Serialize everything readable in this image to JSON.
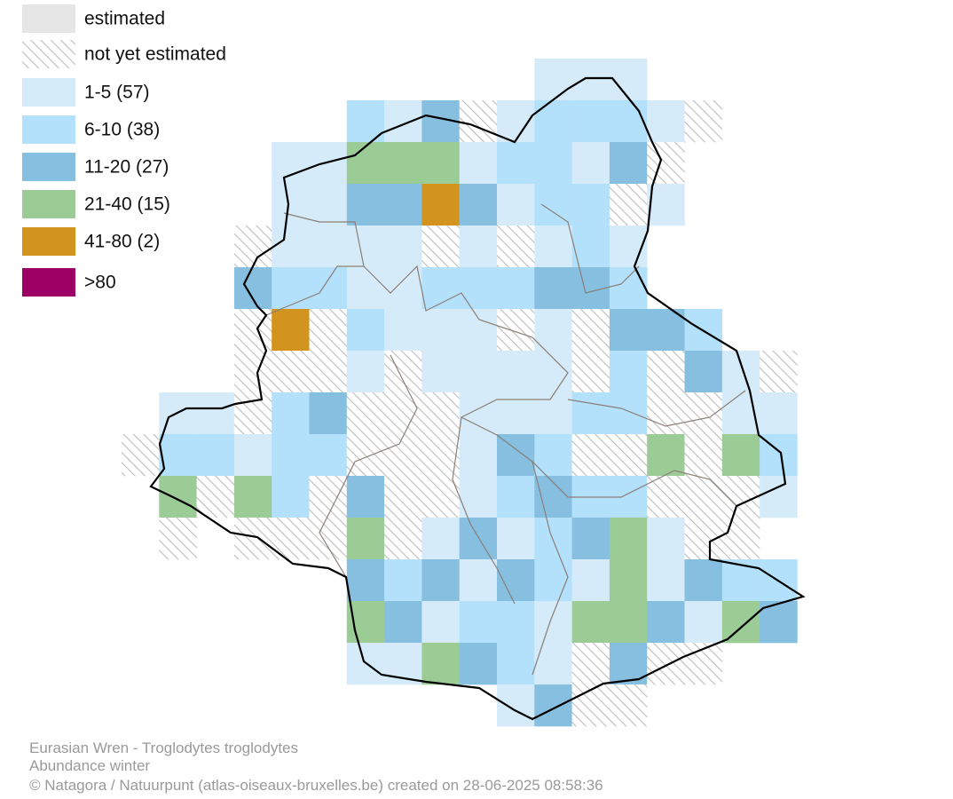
{
  "legend": {
    "items": [
      "estimated",
      "not yet estimated",
      "1-5 (57)",
      "6-10 (38)",
      "11-20 (27)",
      "21-40 (15)",
      "41-80 (2)",
      ">80"
    ]
  },
  "footer": {
    "species": "Eurasian Wren - Troglodytes troglodytes",
    "subtitle": "Abundance winter",
    "credit": "© Natagora / Natuurpunt (atlas-oiseaux-bruxelles.be) created on 28-06-2025 08:58:36"
  }
}
